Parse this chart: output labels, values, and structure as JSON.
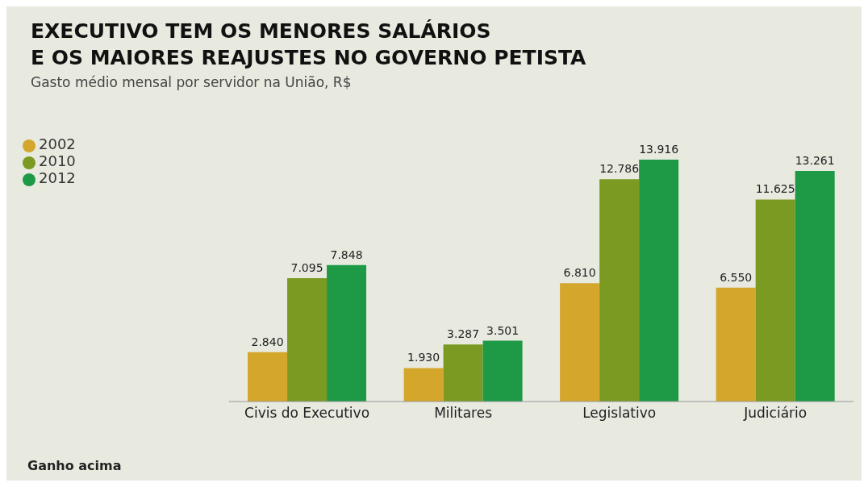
{
  "chart_data": {
    "type": "bar",
    "title": "EXECUTIVO TEM OS MENORES SALÁRIOS\nE OS MAIORES REAJUSTES NO GOVERNO PETISTA",
    "subtitle": "Gasto médio mensal por servidor na União, R$",
    "categories": [
      "Civis do Executivo",
      "Militares",
      "Legislativo",
      "Judiciário"
    ],
    "series": [
      {
        "name": "2002",
        "color": "#d4a62c",
        "values": [
          2840,
          1930,
          6810,
          6550
        ],
        "value_labels": [
          "2.840",
          "1.930",
          "6.810",
          "6.550"
        ]
      },
      {
        "name": "2010",
        "color": "#7b9a22",
        "values": [
          7095,
          3287,
          12786,
          11625
        ],
        "value_labels": [
          "7.095",
          "3.287",
          "12.786",
          "11.625"
        ]
      },
      {
        "name": "2012",
        "color": "#1e9a46",
        "values": [
          7848,
          3501,
          13916,
          13261
        ],
        "value_labels": [
          "7.848",
          "3.501",
          "13.916",
          "13.261"
        ]
      }
    ],
    "legend": "top left",
    "annotations": [
      "Ganho acima"
    ]
  }
}
